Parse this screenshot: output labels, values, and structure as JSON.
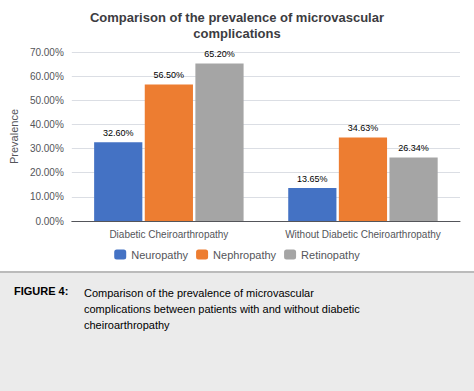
{
  "chart_data": {
    "type": "bar",
    "title": "Comparison of the prevalence of microvascular\ncomplications",
    "categories": [
      "Diabetic Cheiroarthropathy",
      "Without Diabetic Cheiroarthropathy"
    ],
    "series": [
      {
        "name": "Neuropathy",
        "color": "#4472C4",
        "values": [
          32.6,
          13.65
        ],
        "value_labels": [
          "32.60%",
          "13.65%"
        ]
      },
      {
        "name": "Nephropathy",
        "color": "#ED7D31",
        "values": [
          56.5,
          34.63
        ],
        "value_labels": [
          "56.50%",
          "34.63%"
        ]
      },
      {
        "name": "Retinopathy",
        "color": "#A5A5A5",
        "values": [
          65.2,
          26.34
        ],
        "value_labels": [
          "65.20%",
          "26.34%"
        ]
      }
    ],
    "ylabel": "Prevalence",
    "ylim": [
      0,
      70
    ],
    "yticks": [
      {
        "value": 0,
        "label": "0.00%"
      },
      {
        "value": 10,
        "label": "10.00%"
      },
      {
        "value": 20,
        "label": "20.00%"
      },
      {
        "value": 30,
        "label": "30.00%"
      },
      {
        "value": 40,
        "label": "40.00%"
      },
      {
        "value": 50,
        "label": "50.00%"
      },
      {
        "value": 60,
        "label": "60.00%"
      },
      {
        "value": 70,
        "label": "70.00%"
      }
    ],
    "grid": true,
    "legend": "bottom",
    "data_labels": true,
    "annotations": [
      "FIGURE 4:",
      "Comparison of the prevalence of microvascular\ncomplications between patients with and without diabetic\ncheiroarthropathy"
    ]
  }
}
